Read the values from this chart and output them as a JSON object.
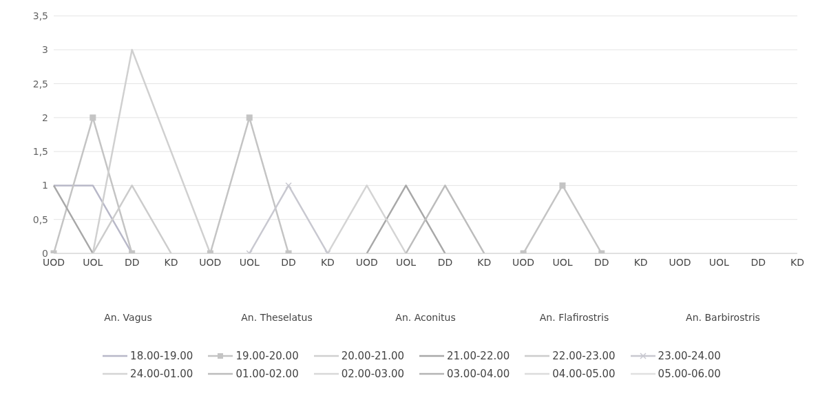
{
  "chart_data": {
    "type": "line",
    "categories": [
      "UOD",
      "UOL",
      "DD",
      "KD",
      "UOD",
      "UOL",
      "DD",
      "KD",
      "UOD",
      "UOL",
      "DD",
      "KD",
      "UOD",
      "UOL",
      "DD",
      "KD",
      "UOD",
      "UOL",
      "DD",
      "KD"
    ],
    "annotations": [
      "An. Vagus",
      "An. Theselatus",
      "An. Aconitus",
      "An. Flafirostris",
      "An. Barbirostris"
    ],
    "series": [
      {
        "name": "18.00-19.00",
        "color": "#b8b8c8",
        "marker": "none",
        "values": [
          1,
          1,
          0,
          null,
          null,
          null,
          null,
          null,
          null,
          null,
          null,
          null,
          null,
          null,
          null,
          null,
          null,
          null,
          null,
          null
        ]
      },
      {
        "name": "19.00-20.00",
        "color": "#c4c4c4",
        "marker": "square",
        "values": [
          0,
          2,
          0,
          null,
          0,
          2,
          0,
          null,
          null,
          null,
          null,
          null,
          0,
          1,
          0,
          null,
          null,
          null,
          null,
          null
        ]
      },
      {
        "name": "20.00-21.00",
        "color": "#d0d0d0",
        "marker": "none",
        "values": [
          null,
          0,
          3,
          1.5,
          0,
          null,
          null,
          null,
          null,
          null,
          null,
          null,
          null,
          null,
          null,
          null,
          null,
          null,
          null,
          null
        ]
      },
      {
        "name": "21.00-22.00",
        "color": "#a8a8a8",
        "marker": "none",
        "values": [
          1,
          0,
          null,
          null,
          null,
          null,
          null,
          null,
          0,
          1,
          0,
          null,
          null,
          null,
          null,
          null,
          null,
          null,
          null,
          null
        ]
      },
      {
        "name": "22.00-23.00",
        "color": "#cccccc",
        "marker": "none",
        "values": [
          null,
          0,
          1,
          0,
          null,
          null,
          null,
          null,
          null,
          null,
          null,
          null,
          null,
          null,
          null,
          null,
          null,
          null,
          null,
          null
        ]
      },
      {
        "name": "23.00-24.00",
        "color": "#c8c8d0",
        "marker": "cross",
        "values": [
          null,
          null,
          null,
          null,
          null,
          0,
          1,
          0,
          null,
          null,
          null,
          null,
          null,
          null,
          null,
          null,
          null,
          null,
          null,
          null
        ]
      },
      {
        "name": "24.00-01.00",
        "color": "#d4d4d4",
        "marker": "none",
        "values": [
          null,
          null,
          null,
          null,
          null,
          null,
          null,
          0,
          1,
          0,
          null,
          null,
          null,
          null,
          null,
          null,
          null,
          null,
          null,
          null
        ]
      },
      {
        "name": "01.00-02.00",
        "color": "#bcbcbc",
        "marker": "none",
        "values": [
          null,
          null,
          null,
          null,
          null,
          null,
          null,
          null,
          null,
          0,
          1,
          0,
          null,
          null,
          null,
          null,
          null,
          null,
          null,
          null
        ]
      },
      {
        "name": "02.00-03.00",
        "color": "#d8d8d8",
        "marker": "none",
        "values": [
          null,
          null,
          null,
          null,
          null,
          null,
          null,
          null,
          null,
          null,
          null,
          null,
          null,
          null,
          null,
          null,
          null,
          null,
          null,
          null
        ]
      },
      {
        "name": "03.00-04.00",
        "color": "#b4b4b4",
        "marker": "none",
        "values": [
          null,
          null,
          null,
          null,
          null,
          null,
          null,
          null,
          null,
          null,
          null,
          null,
          null,
          null,
          null,
          null,
          null,
          null,
          null,
          null
        ]
      },
      {
        "name": "04.00-05.00",
        "color": "#dcdcdc",
        "marker": "none",
        "values": [
          null,
          null,
          null,
          null,
          null,
          null,
          null,
          null,
          null,
          null,
          null,
          null,
          null,
          null,
          null,
          null,
          null,
          null,
          null,
          null
        ]
      },
      {
        "name": "05.00-06.00",
        "color": "#e0e0e0",
        "marker": "none",
        "values": [
          null,
          null,
          null,
          null,
          null,
          null,
          null,
          null,
          null,
          null,
          null,
          null,
          null,
          null,
          null,
          null,
          null,
          null,
          null,
          null
        ]
      }
    ],
    "ylim": [
      0,
      3.5
    ],
    "yticks": [
      0,
      {
        "value": 0.5,
        "label": "0,5"
      },
      1,
      {
        "value": 1.5,
        "label": "1,5"
      },
      2,
      {
        "value": 2.5,
        "label": "2,5"
      },
      3,
      {
        "value": 3.5,
        "label": "3,5"
      }
    ],
    "grid": "y",
    "legend": "bottom",
    "line_style": "solid"
  }
}
